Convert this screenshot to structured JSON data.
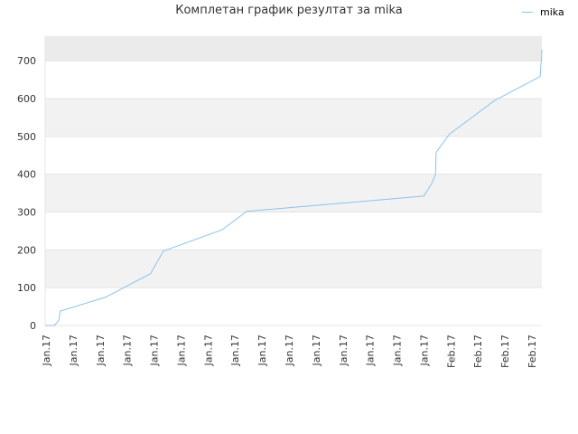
{
  "chart_data": {
    "type": "line",
    "title": "Комплетан график резултат за mika",
    "xlabel": "",
    "ylabel": "",
    "ylim": [
      0,
      765
    ],
    "yticks": [
      0,
      100,
      200,
      300,
      400,
      500,
      600,
      700
    ],
    "x_tick_labels": [
      "Jan.17",
      "Jan.17",
      "Jan.17",
      "Jan.17",
      "Jan.17",
      "Jan.17",
      "Jan.17",
      "Jan.17",
      "Jan.17",
      "Jan.17",
      "Jan.17",
      "Jan.17",
      "Jan.17",
      "Jan.17",
      "Jan.17",
      "Feb.17",
      "Feb.17",
      "Feb.17",
      "Feb.17"
    ],
    "legend": {
      "position": "top-right"
    },
    "grid": true,
    "colors": {
      "line": "#8cc3ec",
      "band": "#f2f2f2",
      "top_band": "#ebebeb"
    },
    "series": [
      {
        "name": "mika",
        "x": [
          0,
          0.018,
          0.022,
          0.028,
          0.03,
          0.122,
          0.212,
          0.238,
          0.356,
          0.406,
          0.762,
          0.778,
          0.786,
          0.787,
          0.814,
          0.905,
          0.996,
          0.997,
          0.998,
          0.999,
          1.0
        ],
        "y": [
          0,
          0,
          5,
          15,
          38,
          75,
          137,
          197,
          253,
          302,
          342,
          375,
          400,
          458,
          506,
          595,
          658,
          665,
          690,
          700,
          730
        ]
      }
    ]
  }
}
